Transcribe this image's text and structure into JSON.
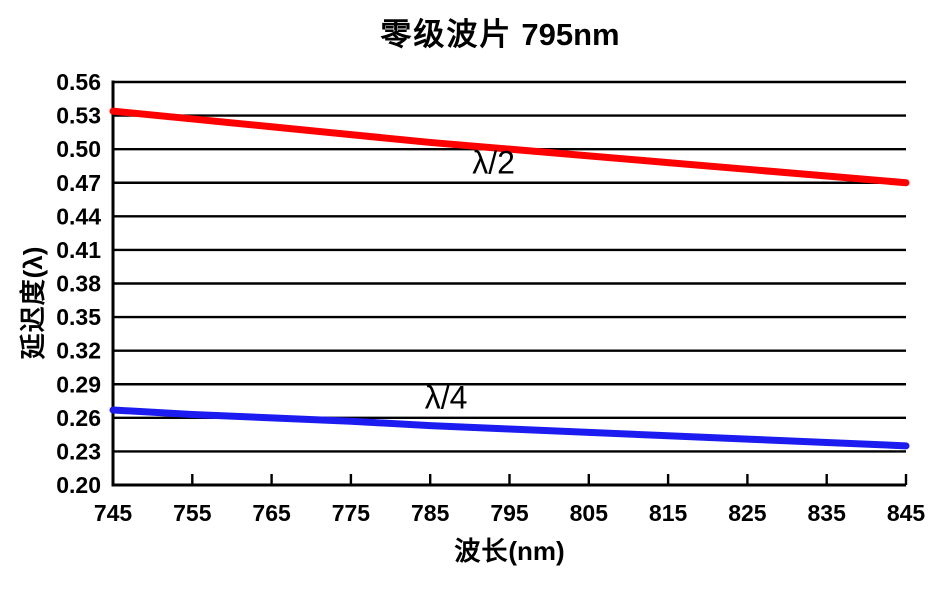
{
  "chart_data": {
    "type": "line",
    "title": "零级波片 795nm",
    "title_cjk": "零级波片",
    "title_num": "795nm",
    "xlabel": "波长(nm)",
    "xlabel_cjk": "波长",
    "xlabel_unit": "(nm)",
    "ylabel": "延迟度(λ)",
    "ylabel_cjk": "延迟度",
    "ylabel_unit": "(λ)",
    "xlim": [
      745,
      845
    ],
    "ylim": [
      0.2,
      0.56
    ],
    "xtick_step": 10,
    "ytick_step": 0.03,
    "xticks": [
      745,
      755,
      765,
      775,
      785,
      795,
      805,
      815,
      825,
      835,
      845
    ],
    "yticks": [
      "0.56",
      "0.53",
      "0.50",
      "0.47",
      "0.44",
      "0.41",
      "0.38",
      "0.35",
      "0.32",
      "0.29",
      "0.26",
      "0.23",
      "0.20"
    ],
    "grid": "horizontal-only",
    "legend": "none",
    "x": [
      745,
      755,
      765,
      775,
      785,
      795,
      805,
      815,
      825,
      835,
      845
    ],
    "series": [
      {
        "name": "λ/2",
        "color": "#ff0000",
        "values": [
          0.534,
          0.527,
          0.52,
          0.513,
          0.506,
          0.5,
          0.494,
          0.488,
          0.482,
          0.476,
          0.47
        ]
      },
      {
        "name": "λ/4",
        "color": "#1c1cf0",
        "values": [
          0.267,
          0.263,
          0.26,
          0.257,
          0.253,
          0.25,
          0.247,
          0.244,
          0.241,
          0.238,
          0.235
        ]
      }
    ],
    "annotations": [
      {
        "text": "λ/2",
        "x": 793,
        "y": 0.488
      },
      {
        "text": "λ/4",
        "x": 787,
        "y": 0.278
      }
    ],
    "colors": {
      "grid": "#000000",
      "axis": "#000000",
      "text": "#000000",
      "background": "#ffffff"
    }
  }
}
